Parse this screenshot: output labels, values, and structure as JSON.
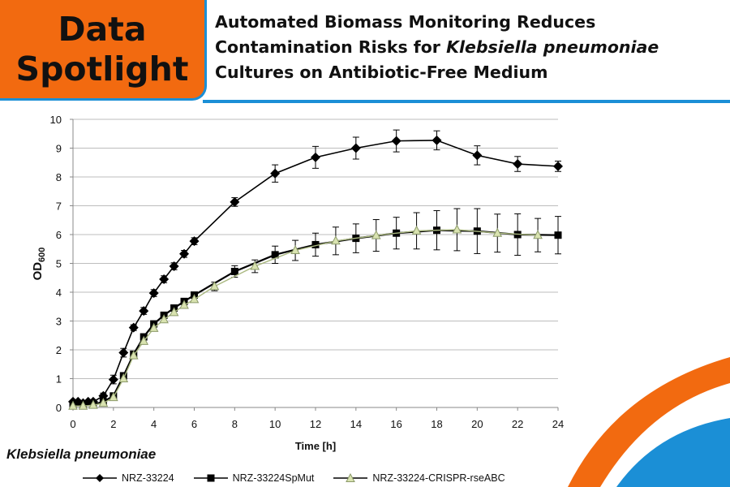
{
  "badge": {
    "line1": "Data",
    "line2": "Spotlight"
  },
  "headline": {
    "line1": "Automated Biomass Monitoring Reduces",
    "line2_prefix": "Contamination Risks for ",
    "line2_italic": "Klebsiella pneumoniae",
    "line3": "Cultures on Antibiotic-Free Medium"
  },
  "organism_label": "Klebsiella pneumoniae",
  "colors": {
    "accent_orange": "#f26a10",
    "accent_blue": "#1b8fd6"
  },
  "chart_data": {
    "type": "line",
    "title": "",
    "xlabel": "Time [h]",
    "ylabel_main": "OD",
    "ylabel_sub": "600",
    "xlim": [
      0,
      24
    ],
    "ylim": [
      0,
      10
    ],
    "xticks": [
      0,
      2,
      4,
      6,
      8,
      10,
      12,
      14,
      16,
      18,
      20,
      22,
      24
    ],
    "yticks": [
      0,
      1,
      2,
      3,
      4,
      5,
      6,
      7,
      8,
      9,
      10
    ],
    "grid": "horizontal",
    "legend_position": "bottom",
    "series": [
      {
        "name": "NRZ-33224",
        "marker": "diamond",
        "x": [
          0,
          0.25,
          0.5,
          0.75,
          1,
          1.5,
          2,
          2.5,
          3,
          3.5,
          4,
          4.5,
          5,
          5.5,
          6,
          8,
          10,
          12,
          14,
          16,
          18,
          20,
          22,
          24
        ],
        "y": [
          0.2,
          0.2,
          0.15,
          0.2,
          0.2,
          0.4,
          0.97,
          1.9,
          2.77,
          3.35,
          3.97,
          4.45,
          4.9,
          5.33,
          5.77,
          7.13,
          8.12,
          8.68,
          9.0,
          9.25,
          9.27,
          8.75,
          8.45,
          8.37
        ],
        "err": [
          0,
          0,
          0,
          0,
          0,
          0.1,
          0.15,
          0.15,
          0.1,
          0.12,
          0.12,
          0.12,
          0.12,
          0.12,
          0.12,
          0.15,
          0.3,
          0.38,
          0.38,
          0.38,
          0.33,
          0.33,
          0.26,
          0.18
        ]
      },
      {
        "name": "NRZ-33224SpMut",
        "marker": "square",
        "x": [
          0,
          0.5,
          1,
          1.5,
          2,
          2.5,
          3,
          3.5,
          4,
          4.5,
          5,
          5.5,
          6,
          8,
          10,
          12,
          14,
          16,
          18,
          20,
          22,
          24
        ],
        "y": [
          0.1,
          0.1,
          0.1,
          0.2,
          0.4,
          1.1,
          1.85,
          2.45,
          2.9,
          3.2,
          3.45,
          3.68,
          3.9,
          4.72,
          5.3,
          5.65,
          5.87,
          6.05,
          6.15,
          6.12,
          6.0,
          5.98
        ],
        "err": [
          0,
          0,
          0,
          0,
          0,
          0.1,
          0.1,
          0.1,
          0.1,
          0.1,
          0.1,
          0.1,
          0.1,
          0.2,
          0.3,
          0.4,
          0.5,
          0.55,
          0.68,
          0.78,
          0.72,
          0.65
        ]
      },
      {
        "name": "NRZ-33224-CRISPR-rseABC",
        "marker": "triangle",
        "x": [
          0,
          0.5,
          1,
          1.5,
          2,
          2.5,
          3,
          3.5,
          4,
          4.5,
          5,
          5.5,
          6,
          7,
          9,
          11,
          13,
          15,
          17,
          19,
          21,
          23
        ],
        "y": [
          0.05,
          0.05,
          0.08,
          0.15,
          0.35,
          1.0,
          1.8,
          2.3,
          2.75,
          3.05,
          3.3,
          3.55,
          3.75,
          4.2,
          4.9,
          5.45,
          5.78,
          5.97,
          6.13,
          6.17,
          6.05,
          5.98
        ],
        "err": [
          0,
          0,
          0,
          0,
          0,
          0.1,
          0.1,
          0.1,
          0.1,
          0.1,
          0.1,
          0.1,
          0.1,
          0.15,
          0.22,
          0.35,
          0.48,
          0.55,
          0.63,
          0.73,
          0.66,
          0.58
        ]
      }
    ]
  }
}
